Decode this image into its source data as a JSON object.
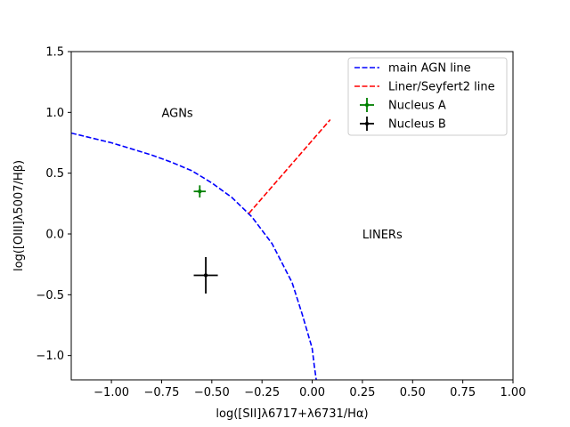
{
  "chart_data": {
    "type": "scatter",
    "xlabel": "log([SII]λ6717+λ6731/Hα)",
    "ylabel": "log([OIII]λ5007/Hβ)",
    "xlim": [
      -1.2,
      1.0
    ],
    "ylim": [
      -1.2,
      1.5
    ],
    "xticks": [
      -1.0,
      -0.75,
      -0.5,
      -0.25,
      0.0,
      0.25,
      0.5,
      0.75,
      1.0
    ],
    "xtick_labels": [
      "−1.00",
      "−0.75",
      "−0.50",
      "−0.25",
      "0.00",
      "0.25",
      "0.50",
      "0.75",
      "1.00"
    ],
    "yticks": [
      -1.0,
      -0.5,
      0.0,
      0.5,
      1.0,
      1.5
    ],
    "ytick_labels": [
      "−1.0",
      "−0.5",
      "0.0",
      "0.5",
      "1.0",
      "1.5"
    ],
    "grid": false,
    "legend_position": "top-right",
    "lines": [
      {
        "name": "main AGN line",
        "color": "#0000ff",
        "style": "dashed",
        "x": [
          -1.2,
          -1.1,
          -1.0,
          -0.9,
          -0.8,
          -0.7,
          -0.6,
          -0.5,
          -0.4,
          -0.3,
          -0.2,
          -0.1,
          -0.05,
          0.0,
          0.01,
          0.02
        ],
        "y": [
          0.83,
          0.79,
          0.75,
          0.7,
          0.65,
          0.59,
          0.52,
          0.42,
          0.3,
          0.14,
          -0.08,
          -0.4,
          -0.66,
          -0.94,
          -1.08,
          -1.2
        ]
      },
      {
        "name": "Liner/Seyfert2 line",
        "color": "#ff0000",
        "style": "dashed",
        "x": [
          -0.315,
          0.09
        ],
        "y": [
          0.17,
          0.94
        ]
      }
    ],
    "points": [
      {
        "name": "Nucleus A",
        "color": "#008000",
        "x": -0.56,
        "y": 0.35,
        "xerr": 0.03,
        "yerr": 0.05
      },
      {
        "name": "Nucleus B",
        "color": "#000000",
        "x": -0.53,
        "y": -0.34,
        "xerr": 0.06,
        "yerr": 0.15
      }
    ],
    "annotations": [
      {
        "text": "AGNs",
        "x": -0.75,
        "y": 1.0
      },
      {
        "text": "LINERs",
        "x": 0.25,
        "y": 0.0
      }
    ]
  }
}
